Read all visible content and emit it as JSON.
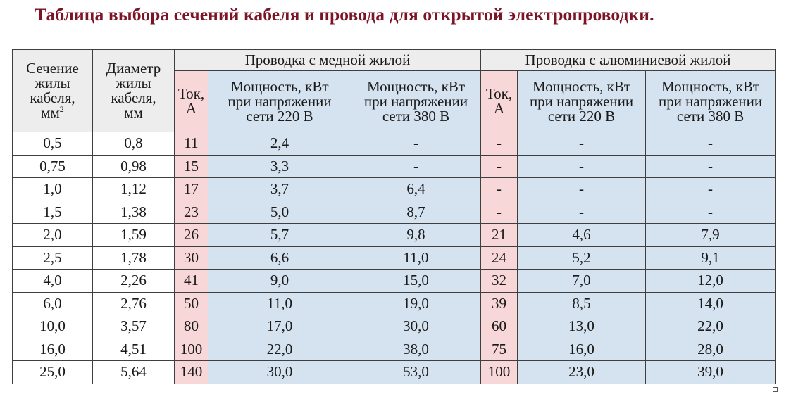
{
  "title": "Таблица выбора сечений кабеля и провода для открытой электропроводки.",
  "header": {
    "section_col": "Сечение жилы кабеля, мм",
    "section_sup": "2",
    "section_lines": [
      "Сечение",
      "жилы",
      "кабеля,",
      "мм"
    ],
    "diameter_lines": [
      "Диаметр",
      "жилы",
      "кабеля,",
      "мм"
    ],
    "copper_group": "Проводка с медной жилой",
    "aluminum_group": "Проводка с алюминиевой жилой",
    "current_lines": [
      "Ток,",
      "А"
    ],
    "power220_lines": [
      "Мощность, кВт",
      "при напряжении",
      "сети 220 В"
    ],
    "power380_lines": [
      "Мощность, кВт",
      "при напряжении",
      "сети 380 В"
    ]
  },
  "rows": [
    [
      "0,5",
      "0,8",
      "11",
      "2,4",
      "-",
      "-",
      "-",
      "-"
    ],
    [
      "0,75",
      "0,98",
      "15",
      "3,3",
      "-",
      "-",
      "-",
      "-"
    ],
    [
      "1,0",
      "1,12",
      "17",
      "3,7",
      "6,4",
      "-",
      "-",
      "-"
    ],
    [
      "1,5",
      "1,38",
      "23",
      "5,0",
      "8,7",
      "-",
      "-",
      "-"
    ],
    [
      "2,0",
      "1,59",
      "26",
      "5,7",
      "9,8",
      "21",
      "4,6",
      "7,9"
    ],
    [
      "2,5",
      "1,78",
      "30",
      "6,6",
      "11,0",
      "24",
      "5,2",
      "9,1"
    ],
    [
      "4,0",
      "2,26",
      "41",
      "9,0",
      "15,0",
      "32",
      "7,0",
      "12,0"
    ],
    [
      "6,0",
      "2,76",
      "50",
      "11,0",
      "19,0",
      "39",
      "8,5",
      "14,0"
    ],
    [
      "10,0",
      "3,57",
      "80",
      "17,0",
      "30,0",
      "60",
      "13,0",
      "22,0"
    ],
    [
      "16,0",
      "4,51",
      "100",
      "22,0",
      "38,0",
      "75",
      "16,0",
      "28,0"
    ],
    [
      "25,0",
      "5,64",
      "140",
      "30,0",
      "53,0",
      "100",
      "23,0",
      "39,0"
    ]
  ],
  "colors": {
    "title": "#7b1424",
    "header_gray": "#ededed",
    "current_pink": "#f8d7d9",
    "power_blue": "#d5e2ef",
    "border": "#3f3f3f"
  }
}
